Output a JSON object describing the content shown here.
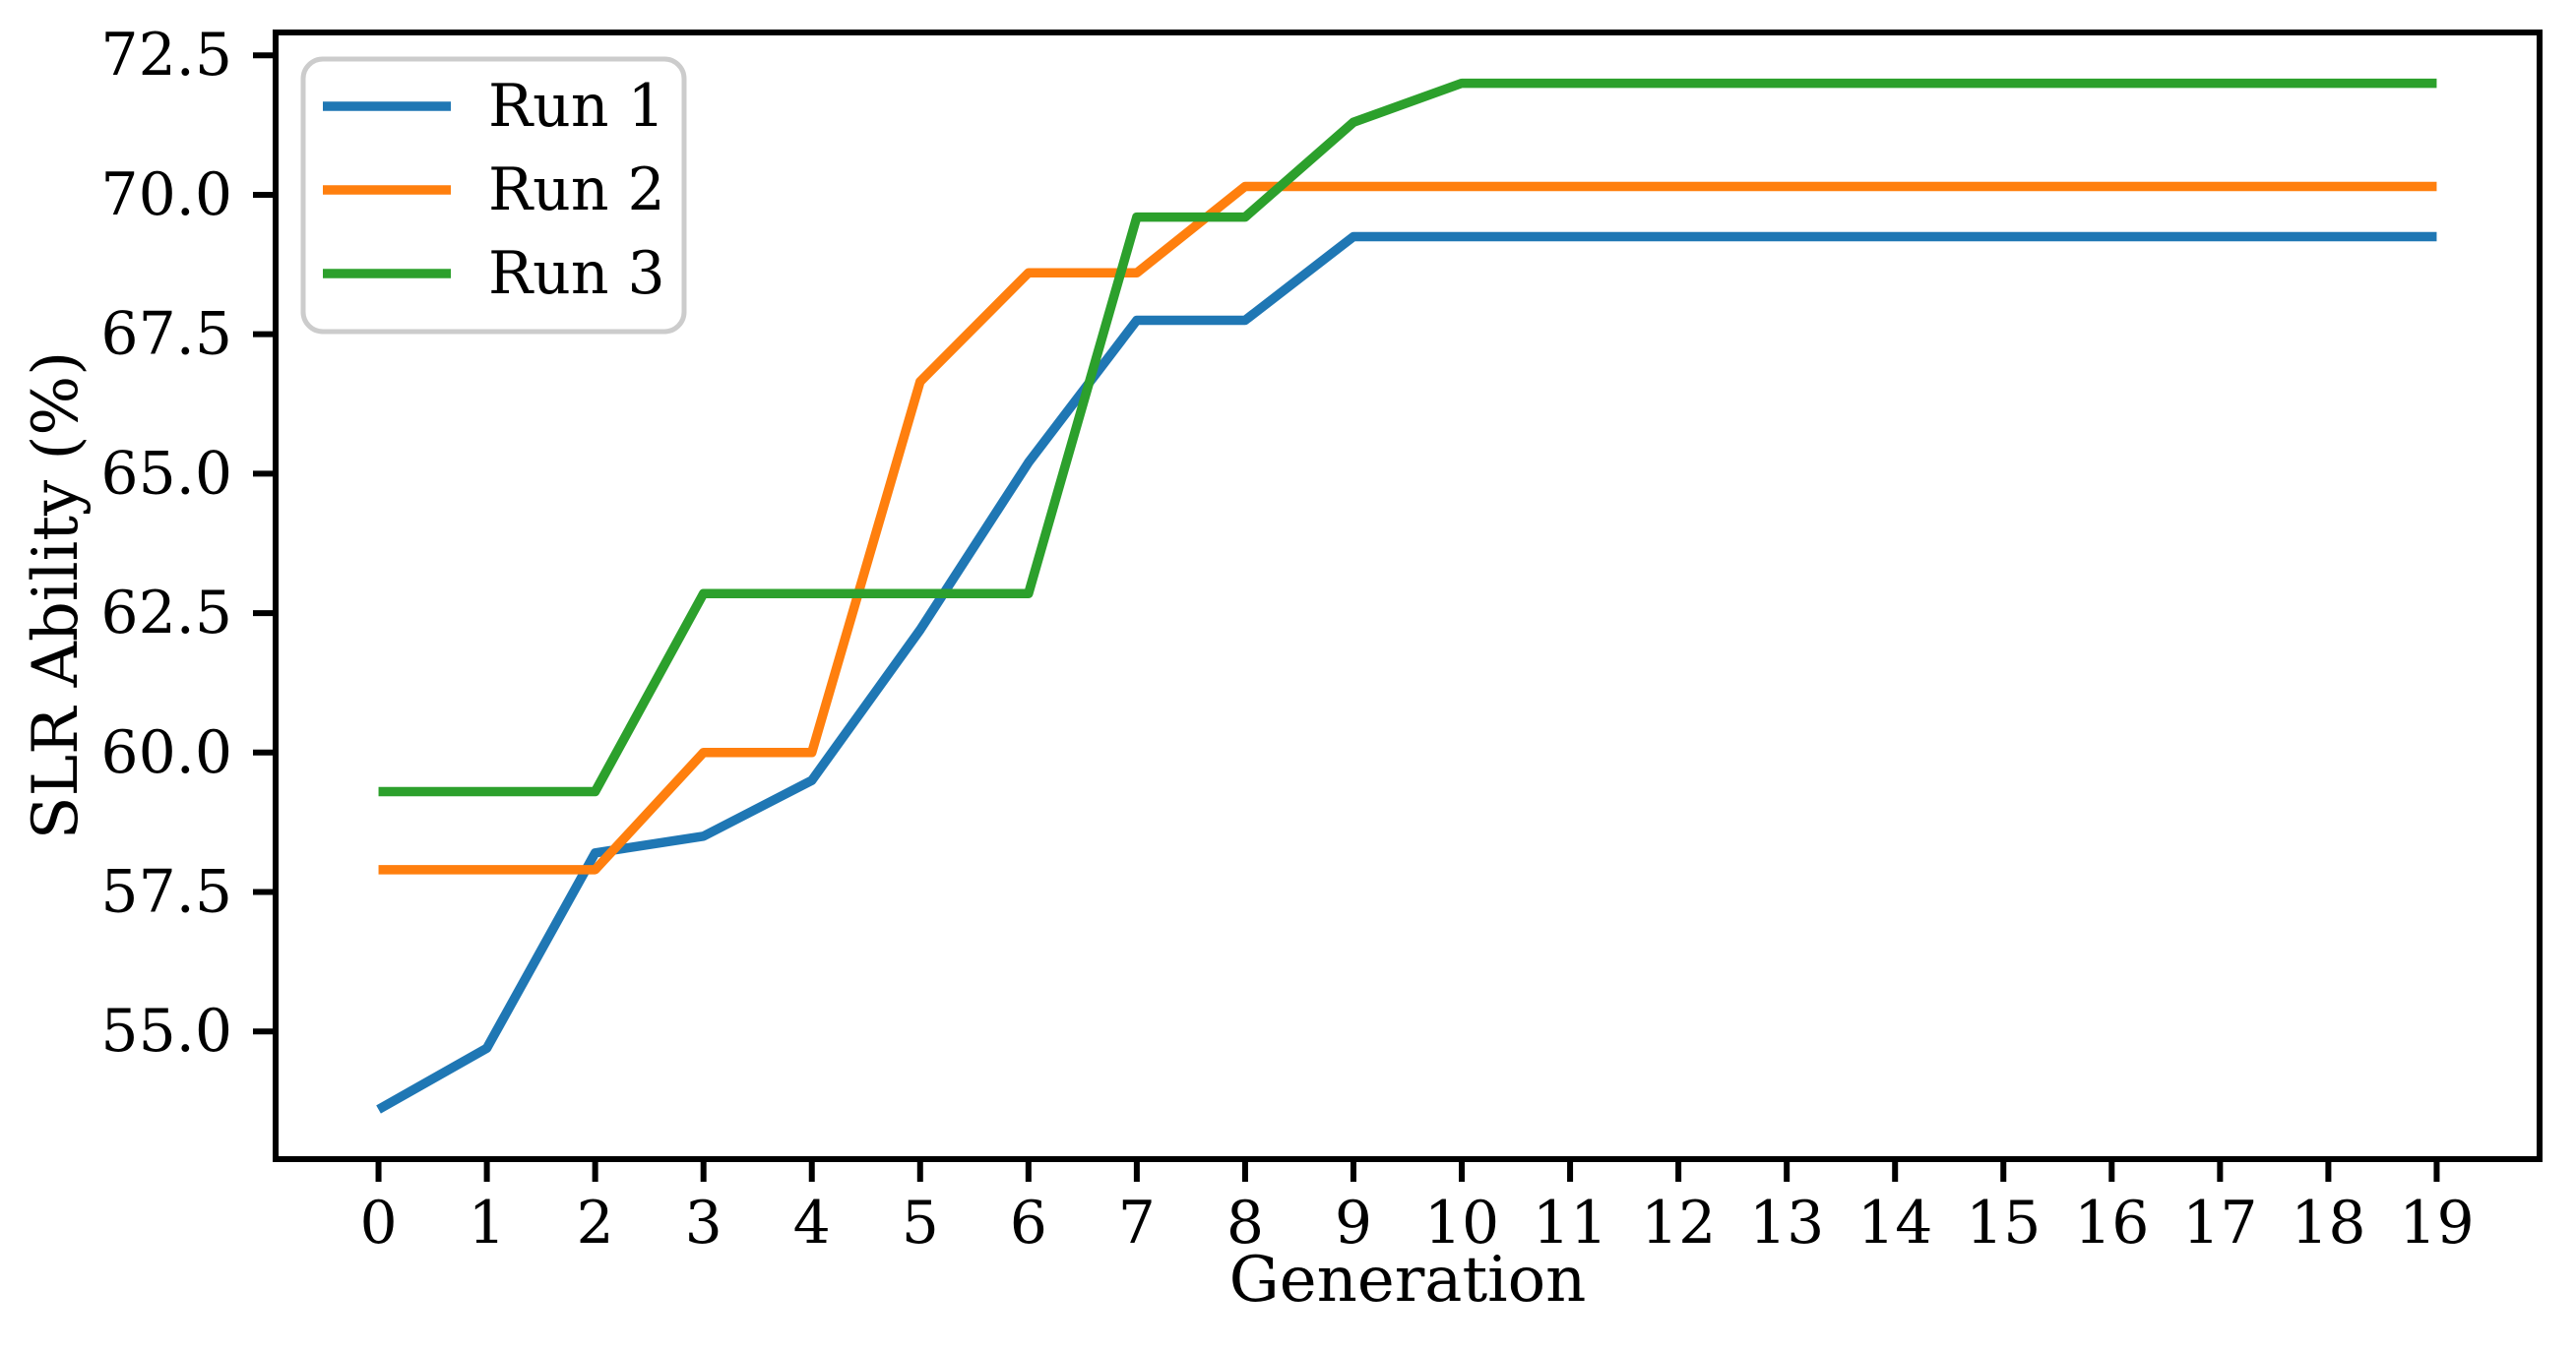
{
  "chart_data": {
    "type": "line",
    "title": "",
    "xlabel": "Generation",
    "ylabel": "SLR Ability (%)",
    "x": [
      0,
      1,
      2,
      3,
      4,
      5,
      6,
      7,
      8,
      9,
      10,
      11,
      12,
      13,
      14,
      15,
      16,
      17,
      18,
      19
    ],
    "series": [
      {
        "name": "Run 1",
        "color": "#1f77b4",
        "values": [
          53.6,
          54.7,
          58.2,
          58.5,
          59.5,
          62.2,
          65.2,
          67.75,
          67.75,
          69.25,
          69.25,
          69.25,
          69.25,
          69.25,
          69.25,
          69.25,
          69.25,
          69.25,
          69.25,
          69.25
        ]
      },
      {
        "name": "Run 2",
        "color": "#ff7f0e",
        "values": [
          57.9,
          57.9,
          57.9,
          60.0,
          60.0,
          66.65,
          68.6,
          68.6,
          70.15,
          70.15,
          70.15,
          70.15,
          70.15,
          70.15,
          70.15,
          70.15,
          70.15,
          70.15,
          70.15,
          70.15
        ]
      },
      {
        "name": "Run 3",
        "color": "#2ca02c",
        "values": [
          59.3,
          59.3,
          59.3,
          62.85,
          62.85,
          62.85,
          62.85,
          69.6,
          69.6,
          71.3,
          72.0,
          72.0,
          72.0,
          72.0,
          72.0,
          72.0,
          72.0,
          72.0,
          72.0,
          72.0
        ]
      }
    ],
    "xticks": [
      0,
      1,
      2,
      3,
      4,
      5,
      6,
      7,
      8,
      9,
      10,
      11,
      12,
      13,
      14,
      15,
      16,
      17,
      18,
      19
    ],
    "yticks": [
      55.0,
      57.5,
      60.0,
      62.5,
      65.0,
      67.5,
      70.0,
      72.5
    ],
    "ytick_labels": [
      "55.0",
      "57.5",
      "60.0",
      "62.5",
      "65.0",
      "67.5",
      "70.0",
      "72.5"
    ],
    "xlim": [
      -0.95,
      19.95
    ],
    "ylim": [
      52.71,
      72.91
    ],
    "grid": false,
    "legend": {
      "position": "upper-left",
      "entries": [
        "Run 1",
        "Run 2",
        "Run 3"
      ]
    },
    "style": {
      "spine_color": "#000000",
      "legend_border_color": "#cccccc",
      "line_width": 9.5,
      "spine_width": 6
    }
  }
}
